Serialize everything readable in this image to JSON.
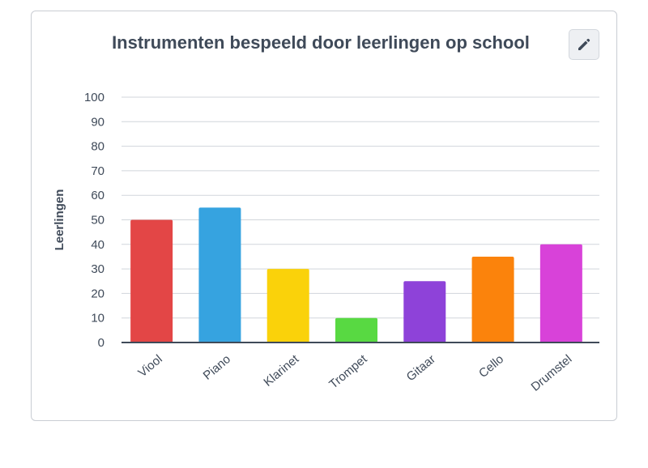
{
  "edit_icon": "pencil-icon",
  "chart_data": {
    "type": "bar",
    "title": "Instrumenten bespeeld door leerlingen op school",
    "xlabel": "",
    "ylabel": "Leerlingen",
    "ylim": [
      0,
      100
    ],
    "yticks": [
      0,
      10,
      20,
      30,
      40,
      50,
      60,
      70,
      80,
      90,
      100
    ],
    "categories": [
      "Viool",
      "Piano",
      "Klarinet",
      "Trompet",
      "Gitaar",
      "Cello",
      "Drumstel"
    ],
    "values": [
      50,
      55,
      30,
      10,
      25,
      35,
      40
    ],
    "colors": [
      "#e34646",
      "#36a3e0",
      "#fad20a",
      "#58d942",
      "#8e42d9",
      "#fb830c",
      "#d842d9"
    ],
    "grid": true,
    "legend": "none"
  }
}
